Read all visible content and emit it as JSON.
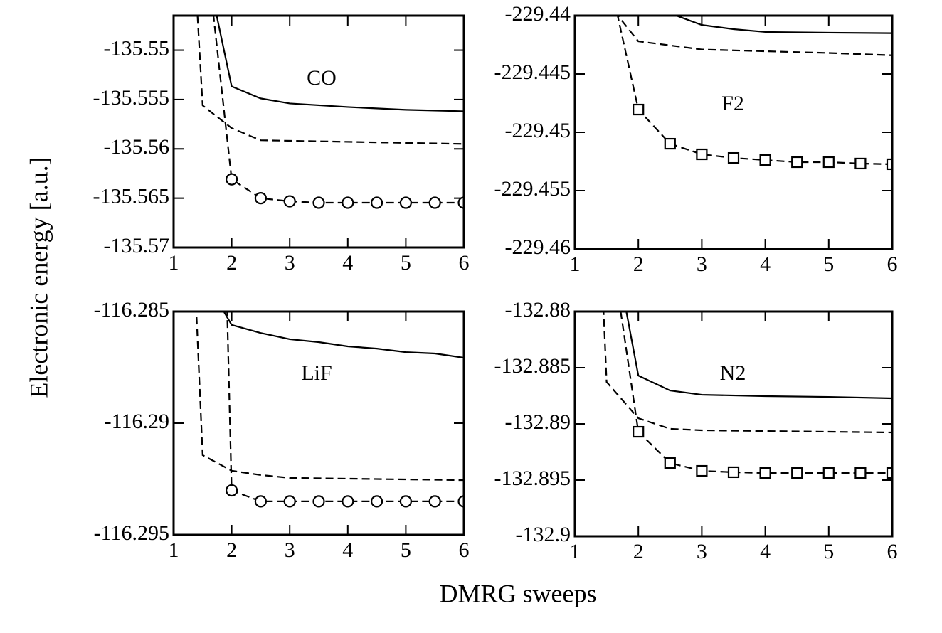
{
  "xlabel": "DMRG sweeps",
  "ylabel": "Electronic energy [a.u.]",
  "chart_data": [
    {
      "type": "line",
      "annotation": "CO",
      "xlim": [
        1,
        6
      ],
      "xticks": [
        1,
        2,
        3,
        4,
        5,
        6
      ],
      "ylim": [
        -135.57,
        -135.5465
      ],
      "yticks": [
        -135.57,
        -135.565,
        -135.56,
        -135.555,
        -135.55
      ],
      "series": [
        {
          "color": "#000000",
          "dash": false,
          "x": [
            1.5,
            2,
            2.5,
            3,
            4,
            5,
            6
          ],
          "values": [
            -135.5398,
            -135.55367,
            -135.55489,
            -135.5554,
            -135.55576,
            -135.55604,
            -135.55619
          ]
        },
        {
          "color": "#000000",
          "dash": true,
          "x": [
            1.4,
            1.5,
            2,
            2.5,
            6
          ],
          "values": [
            -135.5453,
            -135.5556,
            -135.5579,
            -135.55913,
            -135.5595
          ]
        },
        {
          "color": "#000000",
          "dash": true,
          "marker": "circle",
          "x": [
            1.5,
            2,
            2.5,
            3,
            3.5,
            4,
            4.5,
            5,
            5.5,
            6
          ],
          "values": [
            -135.5366,
            -135.56309,
            -135.565,
            -135.56532,
            -135.56546,
            -135.56546,
            -135.56546,
            -135.56546,
            -135.56546,
            -135.56546
          ]
        }
      ]
    },
    {
      "type": "line",
      "annotation": "F2",
      "xlim": [
        1,
        6
      ],
      "xticks": [
        1,
        2,
        3,
        4,
        5,
        6
      ],
      "ylim": [
        -229.46,
        -229.44
      ],
      "yticks": [
        -229.46,
        -229.455,
        -229.45,
        -229.445,
        -229.44
      ],
      "series": [
        {
          "color": "#000000",
          "dash": false,
          "x": [
            2.5,
            3,
            3.5,
            4,
            5,
            6
          ],
          "values": [
            -229.4398,
            -229.4408,
            -229.44116,
            -229.4414,
            -229.44146,
            -229.4415
          ]
        },
        {
          "color": "#000000",
          "dash": true,
          "x": [
            1.5,
            2,
            3,
            4,
            5,
            6
          ],
          "values": [
            -229.4388,
            -229.4422,
            -229.4429,
            -229.44305,
            -229.4432,
            -229.4434
          ]
        },
        {
          "color": "#000000",
          "dash": true,
          "marker": "square",
          "x": [
            1.5,
            2,
            2.5,
            3,
            3.5,
            4,
            4.5,
            5,
            5.5,
            6
          ],
          "values": [
            -229.43573,
            -229.44805,
            -229.45098,
            -229.45189,
            -229.4522,
            -229.45238,
            -229.45256,
            -229.45256,
            -229.45268,
            -229.45274
          ]
        }
      ]
    },
    {
      "type": "line",
      "annotation": "LiF",
      "xlim": [
        1,
        6
      ],
      "xticks": [
        1,
        2,
        3,
        4,
        5,
        6
      ],
      "ylim": [
        -116.295,
        -116.285
      ],
      "yticks": [
        -116.295,
        -116.29,
        -116.285
      ],
      "series": [
        {
          "color": "#000000",
          "dash": false,
          "x": [
            1.5,
            2,
            2.5,
            3,
            3.5,
            4,
            4.5,
            5,
            5.5,
            6
          ],
          "values": [
            -116.28338,
            -116.2856,
            -116.28596,
            -116.28624,
            -116.28637,
            -116.28656,
            -116.28666,
            -116.28682,
            -116.28688,
            -116.28707
          ]
        },
        {
          "color": "#000000",
          "dash": true,
          "x": [
            1.35,
            1.5,
            2,
            2.5,
            3,
            6
          ],
          "values": [
            -116.28252,
            -116.29143,
            -116.29213,
            -116.29232,
            -116.29245,
            -116.29255
          ]
        },
        {
          "color": "#000000",
          "dash": true,
          "marker": "circle",
          "x": [
            1.9,
            2,
            2.5,
            3,
            3.5,
            4,
            4.5,
            5,
            5.5,
            6
          ],
          "values": [
            -116.28268,
            -116.29301,
            -116.2935,
            -116.2935,
            -116.2935,
            -116.2935,
            -116.2935,
            -116.2935,
            -116.2935,
            -116.2935
          ]
        }
      ]
    },
    {
      "type": "line",
      "annotation": "N2",
      "xlim": [
        1,
        6
      ],
      "xticks": [
        1,
        2,
        3,
        4,
        5,
        6
      ],
      "ylim": [
        -132.9,
        -132.88
      ],
      "yticks": [
        -132.9,
        -132.895,
        -132.89,
        -132.885,
        -132.88
      ],
      "series": [
        {
          "color": "#000000",
          "dash": false,
          "x": [
            1.5,
            2,
            2.5,
            3,
            4,
            5,
            6
          ],
          "values": [
            -132.87063,
            -132.8857,
            -132.88703,
            -132.88741,
            -132.88753,
            -132.8876,
            -132.88772
          ]
        },
        {
          "color": "#000000",
          "dash": true,
          "x": [
            1.4,
            1.5,
            2,
            2.5,
            3,
            6
          ],
          "values": [
            -132.87316,
            -132.88627,
            -132.8895,
            -132.89044,
            -132.89057,
            -132.89076
          ]
        },
        {
          "color": "#000000",
          "dash": true,
          "marker": "square",
          "x": [
            1.5,
            2,
            2.5,
            3,
            3.5,
            4,
            4.5,
            5,
            5.5,
            6
          ],
          "values": [
            -132.87146,
            -132.8907,
            -132.89348,
            -132.89418,
            -132.8943,
            -132.89437,
            -132.89437,
            -132.89437,
            -132.89437,
            -132.89437
          ]
        }
      ]
    }
  ]
}
